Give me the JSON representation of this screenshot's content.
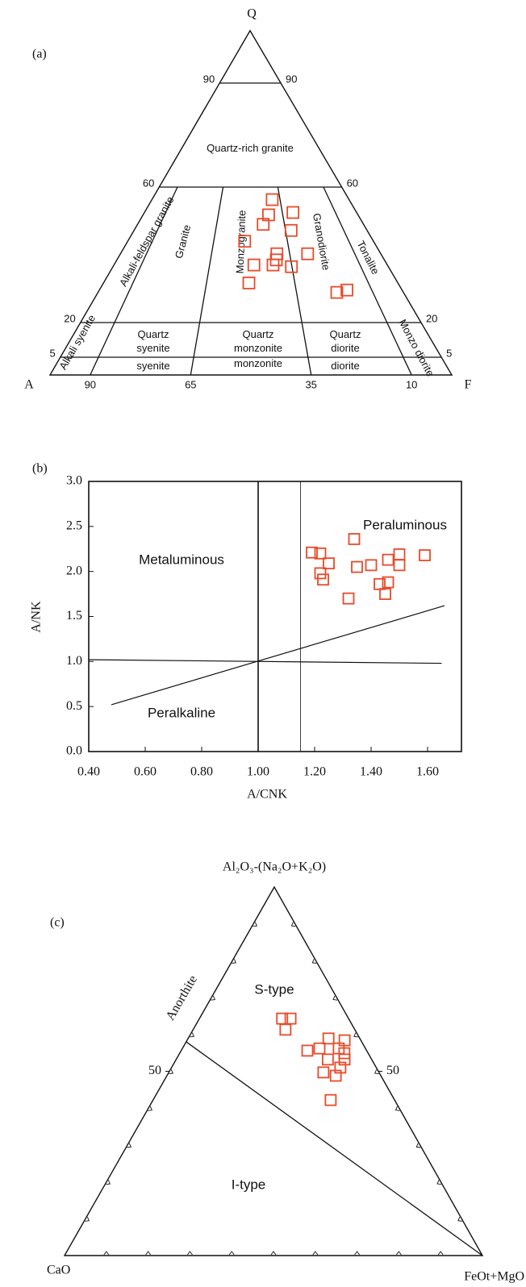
{
  "chart_data": [
    {
      "type": "qapf",
      "panel_label": "(a)",
      "vertices": {
        "top": "Q",
        "left": "A",
        "right": "F"
      },
      "q_ticks": [
        90,
        60,
        20,
        5
      ],
      "feldspar_ticks": [
        90,
        65,
        35,
        10
      ],
      "fields": [
        [
          "Quartz-rich granite"
        ],
        [
          "Alkali-feldspar granite"
        ],
        [
          "Granite"
        ],
        [
          "Monzogranite"
        ],
        [
          "Granodiorite"
        ],
        [
          "Tonalite"
        ],
        [
          "Alkali syenite"
        ],
        [
          "Quartz",
          "syenite"
        ],
        [
          "Quartz",
          "monzonite"
        ],
        [
          "Quartz",
          "diorite"
        ],
        [
          "Monzo diorite"
        ],
        [
          "syenite"
        ],
        [
          "monzonite"
        ],
        [
          "diorite"
        ]
      ],
      "color": "#e84a2a",
      "x": [
        39,
        41.6,
        44.4,
        30,
        32.6,
        52.4,
        48.8,
        39.9,
        40.4,
        41.8,
        35.2,
        28.1,
        50.6,
        21.8,
        18.2
      ],
      "y": [
        56.3,
        51.8,
        49,
        52.5,
        47.2,
        44,
        37,
        40.3,
        38.5,
        37,
        36.5,
        40.3,
        31.7,
        28.9,
        29.6
      ]
    },
    {
      "type": "scatter",
      "panel_label": "(b)",
      "xlabel": "A/CNK",
      "ylabel": "A/NK",
      "xlim": [
        0.4,
        1.72
      ],
      "ylim": [
        0,
        3
      ],
      "xticks": [
        {
          "value": 0.4,
          "label": "0.40"
        },
        {
          "value": 0.6,
          "label": "0.60"
        },
        {
          "value": 0.8,
          "label": "0.80"
        },
        {
          "value": 1,
          "label": "1.00"
        },
        {
          "value": 1.2,
          "label": "1.20"
        },
        {
          "value": 1.4,
          "label": "1.40"
        },
        {
          "value": 1.6,
          "label": "1.60"
        }
      ],
      "yticks": [
        {
          "value": 0,
          "label": "0.0"
        },
        {
          "value": 0.5,
          "label": "0.5"
        },
        {
          "value": 1,
          "label": "1.0"
        },
        {
          "value": 1.5,
          "label": "1.5"
        },
        {
          "value": 2,
          "label": "2.0"
        },
        {
          "value": 2.5,
          "label": "2.5"
        },
        {
          "value": 3,
          "label": "3.0"
        }
      ],
      "regions": [
        "Peraluminous",
        "Metaluminous",
        "Peralkaline"
      ],
      "reference_lines": [
        {
          "x": [
            1,
            1
          ],
          "y": [
            0,
            3
          ],
          "width": 1.6
        },
        {
          "x": [
            1.15,
            1.15
          ],
          "y": [
            0,
            3
          ],
          "width": 0.8
        },
        {
          "x": [
            0.4,
            1.65
          ],
          "y": [
            1.02,
            0.98
          ],
          "width": 1.2
        },
        {
          "x": [
            0.48,
            1.66
          ],
          "y": [
            0.52,
            1.62
          ],
          "width": 1.2
        }
      ],
      "color": "#e84a2a",
      "x": [
        1.19,
        1.22,
        1.25,
        1.22,
        1.23,
        1.34,
        1.35,
        1.4,
        1.46,
        1.5,
        1.5,
        1.59,
        1.43,
        1.46,
        1.45,
        1.32
      ],
      "y": [
        2.21,
        2.2,
        2.09,
        1.98,
        1.91,
        2.36,
        2.05,
        2.07,
        2.13,
        2.19,
        2.07,
        2.18,
        1.86,
        1.88,
        1.75,
        1.7
      ]
    },
    {
      "type": "ternary",
      "panel_label": "(c)",
      "vertices": {
        "top": "Al₂O₃-(Na₂O+K₂O)",
        "left": "CaO",
        "right": "FeOt+MgO"
      },
      "a_ticks": [
        50
      ],
      "fields": [
        "S-type",
        "I-type",
        "Anorthite"
      ],
      "boundary": {
        "a": [
          58,
          0
        ],
        "f": [
          0,
          100
        ]
      },
      "color": "#e84a2a",
      "a": [
        64.3,
        64.3,
        61.3,
        58.9,
        58.4,
        55.6,
        56.2,
        56.2,
        54.9,
        53.2,
        53.2,
        51.0,
        48.8,
        49.7,
        42.2
      ],
      "f": [
        19.8,
        21.8,
        22.1,
        33.6,
        37.7,
        30.2,
        32.8,
        37.4,
        39.4,
        36.3,
        40.3,
        40.4,
        40.4,
        37.0,
        42.5
      ]
    }
  ]
}
